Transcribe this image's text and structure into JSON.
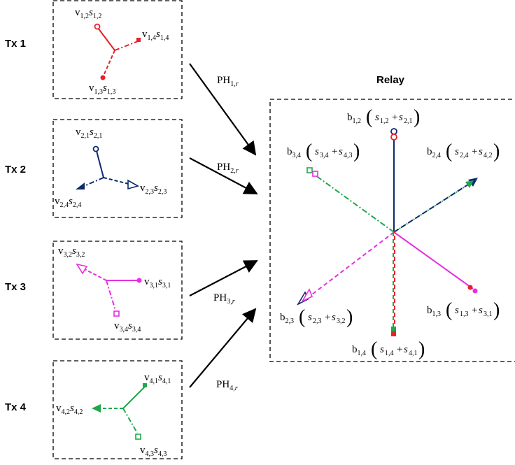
{
  "transmitters": [
    {
      "label": "Tx 1",
      "vectors": [
        "v1,2 s1,2",
        "v1,4 s1,4",
        "v1,3 s1,3"
      ]
    },
    {
      "label": "Tx 2",
      "vectors": [
        "v2,1 s2,1",
        "v2,4 s2,4",
        "v2,3 s2,3"
      ]
    },
    {
      "label": "Tx 3",
      "vectors": [
        "v3,2 s3,2",
        "v3,1 s3,1",
        "v3,4 s3,4"
      ]
    },
    {
      "label": "Tx 4",
      "vectors": [
        "v4,1 s4,1",
        "v4,2 s4,2",
        "v4,3 s4,3"
      ]
    }
  ],
  "channels": [
    "PH1,r",
    "PH2,r",
    "PH3,r",
    "PH4,r"
  ],
  "relay": {
    "title": "Relay",
    "outputs": [
      "b1,2 (s1,2 +s2,1)",
      "b3,4 (s3,4 +s4,3)",
      "b2,4 (s2,4 +s4,2)",
      "b2,3 (s2,3 +s3,2)",
      "b1,3 (s1,3 +s3,1)",
      "b1,4 (s1,4 +s4,1)"
    ]
  },
  "colors": {
    "red": "#e8202a",
    "navy": "#0d2a6b",
    "magenta": "#e62ee0",
    "green": "#1ea84a",
    "black": "#000000"
  }
}
